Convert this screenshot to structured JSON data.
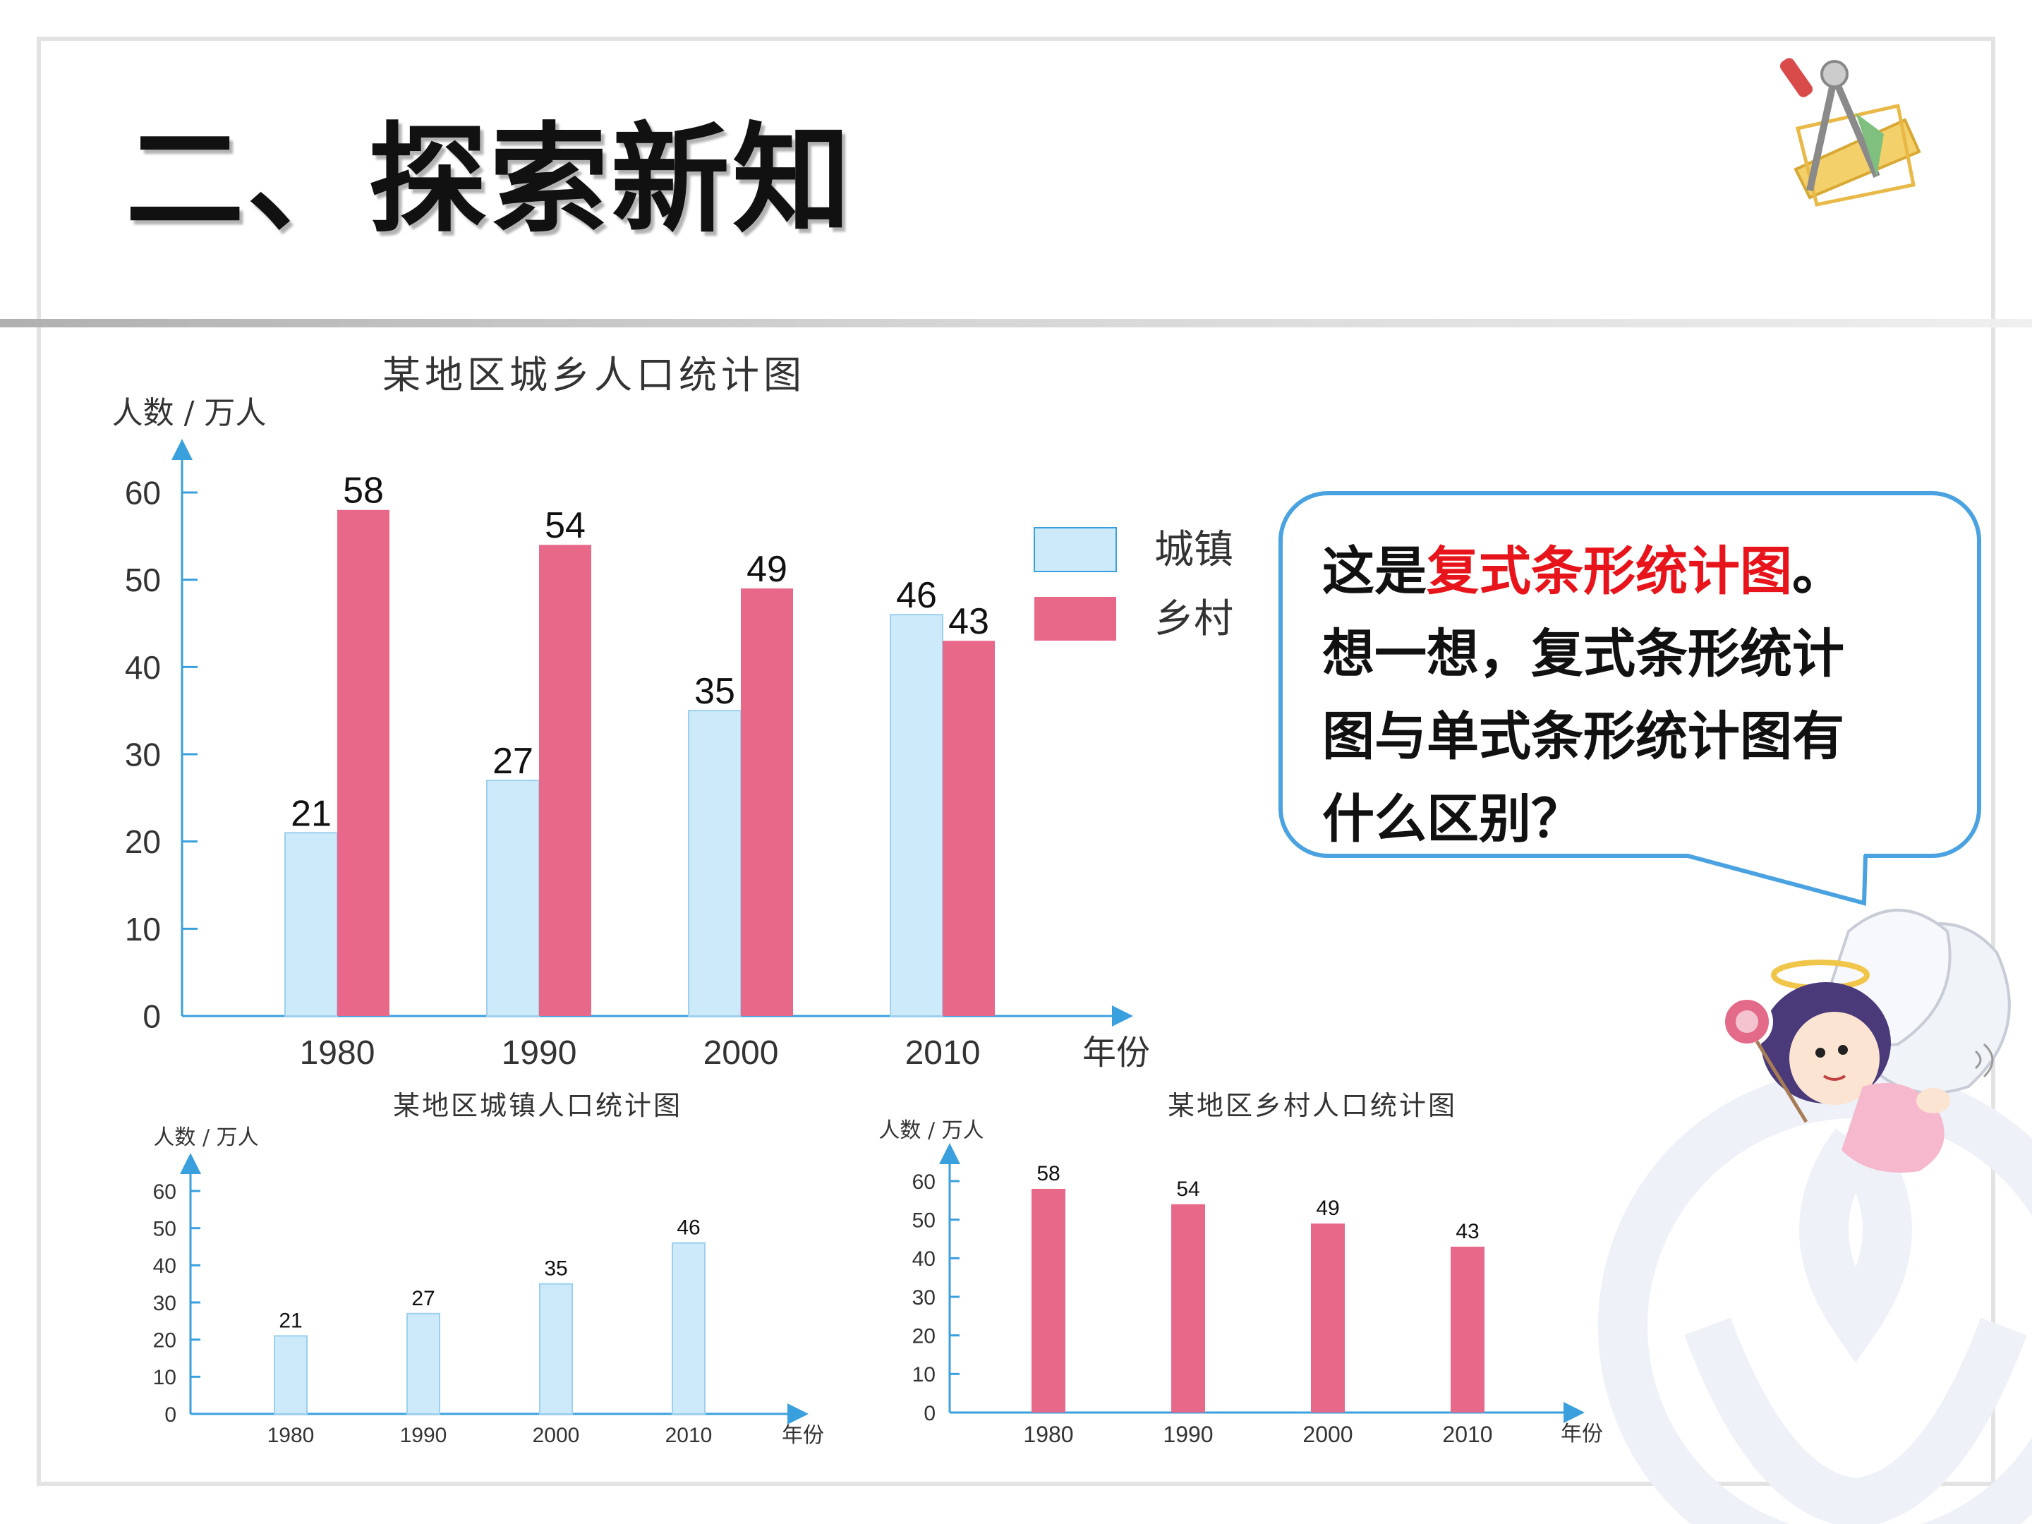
{
  "title": "二、探索新知",
  "bubble": {
    "line1_prefix": "这是",
    "line1_highlight": "复式条形统计图",
    "line1_suffix": "。",
    "line2": "想一想，复式条形统计",
    "line3": "图与单式条形统计图有",
    "line4": "什么区别？",
    "highlight_color": "#e8141b"
  },
  "colors": {
    "urban": "#cdeafa",
    "rural": "#e8688a",
    "axis": "#3aa0dd"
  },
  "chart_data": [
    {
      "type": "bar",
      "title": "某地区城乡人口统计图",
      "ylabel": "人数 / 万人",
      "xlabel": "年份",
      "categories": [
        "1980",
        "1990",
        "2000",
        "2010"
      ],
      "yticks": [
        0,
        10,
        20,
        30,
        40,
        50,
        60
      ],
      "ylim": [
        0,
        60
      ],
      "legend_position": "right",
      "series": [
        {
          "name": "城镇",
          "values": [
            21,
            27,
            35,
            46
          ]
        },
        {
          "name": "乡村",
          "values": [
            58,
            54,
            49,
            43
          ]
        }
      ]
    },
    {
      "type": "bar",
      "title": "某地区城镇人口统计图",
      "ylabel": "人数 / 万人",
      "xlabel": "年份",
      "categories": [
        "1980",
        "1990",
        "2000",
        "2010"
      ],
      "yticks": [
        0,
        10,
        20,
        30,
        40,
        50,
        60
      ],
      "ylim": [
        0,
        60
      ],
      "series": [
        {
          "values": [
            21,
            27,
            35,
            46
          ]
        }
      ]
    },
    {
      "type": "bar",
      "title": "某地区乡村人口统计图",
      "ylabel": "人数 / 万人",
      "xlabel": "年份",
      "categories": [
        "1980",
        "1990",
        "2000",
        "2010"
      ],
      "yticks": [
        0,
        10,
        20,
        30,
        40,
        50,
        60
      ],
      "ylim": [
        0,
        60
      ],
      "series": [
        {
          "values": [
            58,
            54,
            49,
            43
          ]
        }
      ]
    }
  ]
}
